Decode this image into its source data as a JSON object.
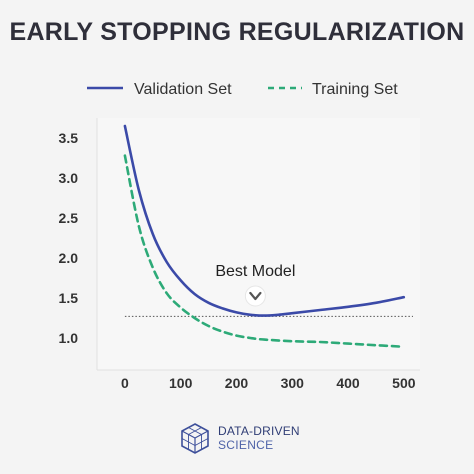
{
  "chart_data": {
    "type": "line",
    "title": "EARLY STOPPING REGULARIZATION",
    "xlabel": "",
    "ylabel": "",
    "xlim": [
      -50,
      520
    ],
    "ylim": [
      0.6,
      3.75
    ],
    "xticks": [
      0,
      100,
      200,
      300,
      400,
      500
    ],
    "yticks": [
      1.0,
      1.5,
      2.0,
      2.5,
      3.0,
      3.5
    ],
    "xtick_labels": [
      "0",
      "100",
      "200",
      "300",
      "400",
      "500"
    ],
    "ytick_labels": [
      "1.0",
      "1.5",
      "2.0",
      "2.5",
      "3.0",
      "3.5"
    ],
    "grid": false,
    "legend": "top",
    "series": [
      {
        "name": "Validation Set",
        "style": "solid",
        "color": "#3b4aa8",
        "x": [
          0,
          25,
          50,
          75,
          100,
          125,
          150,
          175,
          200,
          225,
          250,
          275,
          300,
          350,
          400,
          450,
          500
        ],
        "y": [
          3.65,
          2.85,
          2.3,
          1.95,
          1.72,
          1.55,
          1.44,
          1.37,
          1.32,
          1.29,
          1.28,
          1.29,
          1.31,
          1.35,
          1.39,
          1.44,
          1.51
        ]
      },
      {
        "name": "Training Set",
        "style": "dashed",
        "color": "#2daa78",
        "x": [
          0,
          25,
          50,
          75,
          100,
          125,
          150,
          175,
          200,
          225,
          250,
          300,
          350,
          400,
          450,
          500
        ],
        "y": [
          3.28,
          2.4,
          1.88,
          1.56,
          1.38,
          1.25,
          1.15,
          1.08,
          1.03,
          1.0,
          0.98,
          0.96,
          0.95,
          0.93,
          0.91,
          0.89
        ]
      }
    ],
    "reference_line": {
      "y": 1.27,
      "style": "dotted"
    },
    "annotation": {
      "text": "Best Model",
      "x": 250,
      "y": 1.28
    }
  },
  "branding": {
    "logo_icon": "hexagon-cube-icon",
    "line1": "DATA-DRIVEN",
    "line2": "SCIENCE",
    "color": "#2f3d75"
  }
}
